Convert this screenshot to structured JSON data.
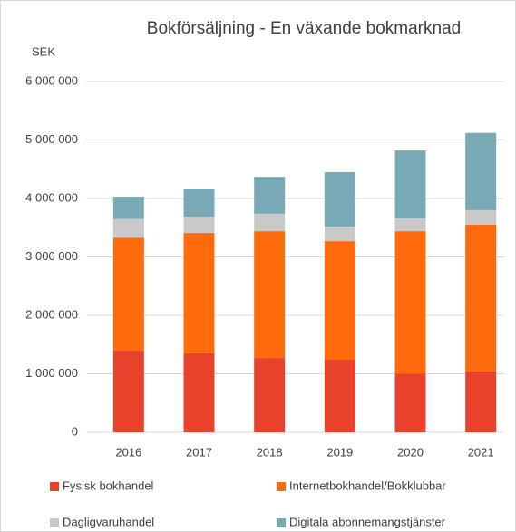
{
  "chart_data": {
    "type": "stacked_bar",
    "title": "Bokförsäljning - En växande bokmarknad",
    "ylabel": "SEK",
    "categories": [
      "2016",
      "2017",
      "2018",
      "2019",
      "2020",
      "2021"
    ],
    "series": [
      {
        "name": "Fysisk bokhandel",
        "color": "#e8412c",
        "values": [
          1400000,
          1350000,
          1270000,
          1240000,
          1000000,
          1040000
        ]
      },
      {
        "name": "Internetbokhandel/Bokklubbar",
        "color": "#ff6a0d",
        "values": [
          1930000,
          2060000,
          2170000,
          2030000,
          2440000,
          2510000
        ]
      },
      {
        "name": "Dagligvaruhandel",
        "color": "#c9c9c9",
        "values": [
          320000,
          280000,
          300000,
          250000,
          220000,
          250000
        ]
      },
      {
        "name": "Digitala abonnemangstjänster",
        "color": "#7aa9b6",
        "values": [
          380000,
          480000,
          630000,
          930000,
          1160000,
          1320000
        ]
      }
    ],
    "ylim": [
      0,
      6000000
    ],
    "yticks": [
      0,
      {
        "value": 1000000,
        "label": "1 000 000"
      },
      {
        "value": 2000000,
        "label": "2 000 000"
      },
      {
        "value": 3000000,
        "label": "3 000 000"
      },
      {
        "value": 4000000,
        "label": "4 000 000"
      },
      {
        "value": 5000000,
        "label": "5 000 000"
      },
      {
        "value": 6000000,
        "label": "6 000 000"
      }
    ],
    "grid": true
  }
}
